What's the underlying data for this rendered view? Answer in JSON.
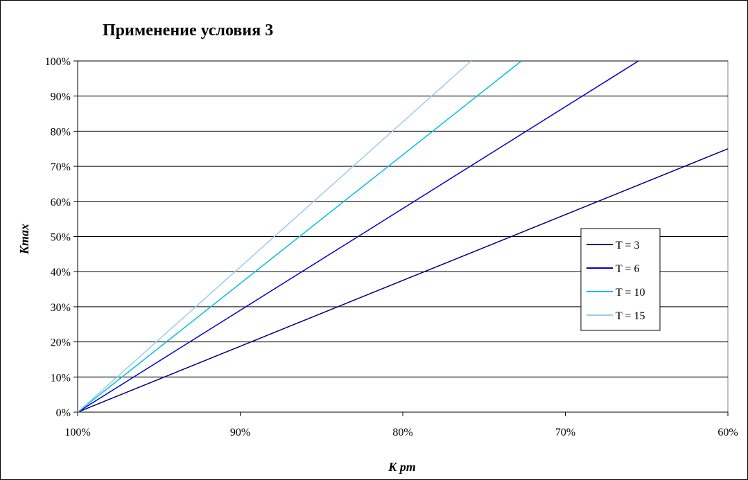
{
  "chart_data": {
    "type": "line",
    "title": "Применение условия 3",
    "xlabel": "K pm",
    "ylabel": "Kmax",
    "x_ticks": [
      "100%",
      "90%",
      "80%",
      "70%",
      "60%"
    ],
    "y_ticks": [
      "0%",
      "10%",
      "20%",
      "30%",
      "40%",
      "50%",
      "60%",
      "70%",
      "80%",
      "90%",
      "100%"
    ],
    "xlim": [
      100,
      60
    ],
    "ylim": [
      0,
      100
    ],
    "grid": "horizontal",
    "legend_position": "right",
    "series": [
      {
        "name": "T = 3",
        "color": "#000080",
        "x": [
          100,
          60
        ],
        "y": [
          0,
          75
        ]
      },
      {
        "name": "T = 6",
        "color": "#0000cc",
        "x": [
          100,
          65.5
        ],
        "y": [
          0,
          100
        ]
      },
      {
        "name": "T = 10",
        "color": "#00bfdf",
        "x": [
          100,
          72.7
        ],
        "y": [
          0,
          100
        ]
      },
      {
        "name": "T = 15",
        "color": "#99ccee",
        "x": [
          100,
          75.8
        ],
        "y": [
          0,
          100
        ]
      }
    ]
  }
}
